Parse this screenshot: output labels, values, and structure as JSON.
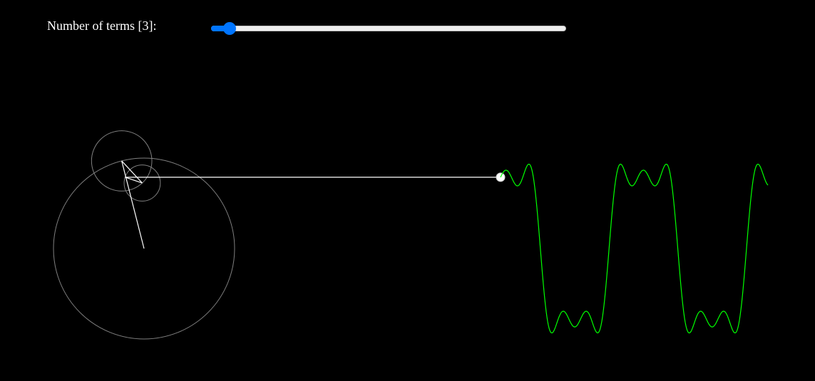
{
  "controls": {
    "terms_label": "Number of terms [3]:",
    "terms_value": 3,
    "terms_min": 1,
    "terms_max": 100
  },
  "colors": {
    "background": "#000000",
    "circle_stroke": "#808080",
    "radius_stroke": "#ffffff",
    "connector_line": "#ffffff",
    "wave_stroke": "#00ff00",
    "slider_accent": "#0075ff"
  },
  "simulation": {
    "wave_type": "square wave fourier series",
    "odd_harmonics": [
      1,
      3,
      5
    ]
  }
}
